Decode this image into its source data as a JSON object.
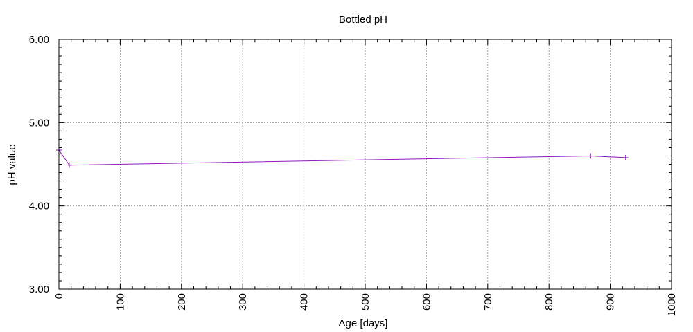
{
  "chart_data": {
    "type": "line",
    "title": "Bottled pH",
    "xlabel": "Age [days]",
    "ylabel": "pH value",
    "xlim": [
      0,
      1000
    ],
    "ylim": [
      3.0,
      6.0
    ],
    "x_ticks": [
      "0",
      "100",
      "200",
      "300",
      "400",
      "500",
      "600",
      "700",
      "800",
      "900",
      "1000"
    ],
    "y_ticks": [
      "3.00",
      "4.00",
      "5.00",
      "6.00"
    ],
    "grid": true,
    "line_color": "#8b1ab8",
    "series": [
      {
        "x": [
          0,
          17,
          868,
          925
        ],
        "y": [
          4.67,
          4.49,
          4.6,
          4.58
        ]
      }
    ]
  }
}
